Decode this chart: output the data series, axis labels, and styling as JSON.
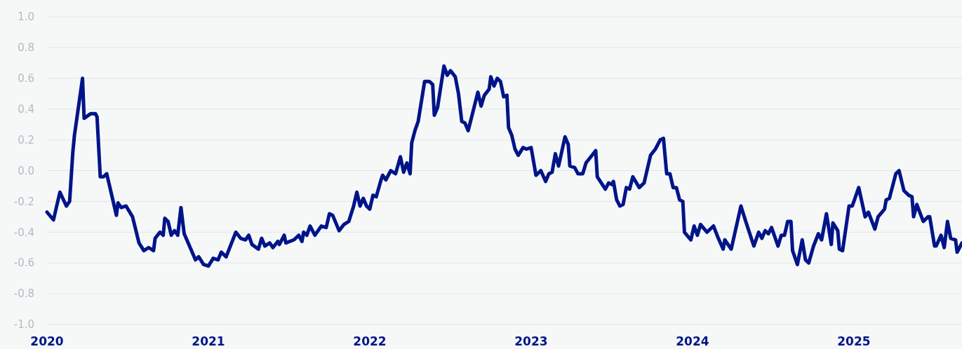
{
  "chart_data": {
    "type": "line",
    "x": [
      2020.0,
      2020.04,
      2020.08,
      2020.12,
      2020.14,
      2020.16,
      2020.17,
      2020.22,
      2020.23,
      2020.27,
      2020.3,
      2020.31,
      2020.33,
      2020.35,
      2020.37,
      2020.43,
      2020.44,
      2020.46,
      2020.49,
      2020.53,
      2020.57,
      2020.6,
      2020.63,
      2020.66,
      2020.67,
      2020.7,
      2020.72,
      2020.73,
      2020.75,
      2020.77,
      2020.79,
      2020.81,
      2020.83,
      2020.85,
      2020.92,
      2020.94,
      2020.97,
      2021.0,
      2021.03,
      2021.06,
      2021.08,
      2021.11,
      2021.17,
      2021.2,
      2021.23,
      2021.25,
      2021.27,
      2021.31,
      2021.33,
      2021.35,
      2021.38,
      2021.4,
      2021.43,
      2021.44,
      2021.47,
      2021.48,
      2021.53,
      2021.56,
      2021.58,
      2021.59,
      2021.61,
      2021.63,
      2021.66,
      2021.7,
      2021.73,
      2021.75,
      2021.77,
      2021.81,
      2021.84,
      2021.87,
      2021.9,
      2021.92,
      2021.94,
      2021.96,
      2021.98,
      2022.0,
      2022.02,
      2022.04,
      2022.07,
      2022.08,
      2022.1,
      2022.13,
      2022.16,
      2022.19,
      2022.21,
      2022.23,
      2022.25,
      2022.26,
      2022.28,
      2022.3,
      2022.34,
      2022.37,
      2022.39,
      2022.4,
      2022.42,
      2022.46,
      2022.48,
      2022.5,
      2022.53,
      2022.55,
      2022.57,
      2022.59,
      2022.61,
      2022.67,
      2022.69,
      2022.71,
      2022.74,
      2022.75,
      2022.77,
      2022.79,
      2022.81,
      2022.83,
      2022.85,
      2022.86,
      2022.88,
      2022.9,
      2022.92,
      2022.95,
      2022.97,
      2023.0,
      2023.03,
      2023.06,
      2023.09,
      2023.11,
      2023.13,
      2023.15,
      2023.17,
      2023.21,
      2023.23,
      2023.24,
      2023.27,
      2023.29,
      2023.32,
      2023.34,
      2023.4,
      2023.41,
      2023.46,
      2023.48,
      2023.5,
      2023.51,
      2023.53,
      2023.55,
      2023.57,
      2023.59,
      2023.61,
      2023.63,
      2023.67,
      2023.7,
      2023.74,
      2023.77,
      2023.8,
      2023.82,
      2023.84,
      2023.86,
      2023.88,
      2023.9,
      2023.92,
      2023.94,
      2023.95,
      2023.99,
      2024.01,
      2024.03,
      2024.05,
      2024.09,
      2024.13,
      2024.16,
      2024.19,
      2024.2,
      2024.24,
      2024.3,
      2024.33,
      2024.38,
      2024.41,
      2024.43,
      2024.45,
      2024.47,
      2024.49,
      2024.53,
      2024.55,
      2024.57,
      2024.59,
      2024.61,
      2024.62,
      2024.65,
      2024.68,
      2024.7,
      2024.72,
      2024.75,
      2024.78,
      2024.8,
      2024.83,
      2024.86,
      2024.87,
      2024.9,
      2024.91,
      2024.93,
      2024.97,
      2024.99,
      2025.03,
      2025.07,
      2025.09,
      2025.13,
      2025.15,
      2025.19,
      2025.2,
      2025.22,
      2025.26,
      2025.28,
      2025.31,
      2025.34,
      2025.36,
      2025.37,
      2025.39,
      2025.43,
      2025.46,
      2025.47,
      2025.5,
      2025.51,
      2025.54,
      2025.56,
      2025.58,
      2025.6,
      2025.63,
      2025.64,
      2025.67
    ],
    "series": [
      {
        "color": "#001489",
        "values": [
          -0.27,
          -0.32,
          -0.14,
          -0.23,
          -0.2,
          0.12,
          0.23,
          0.6,
          0.34,
          0.37,
          0.37,
          0.35,
          -0.04,
          -0.04,
          -0.02,
          -0.29,
          -0.21,
          -0.24,
          -0.23,
          -0.3,
          -0.47,
          -0.52,
          -0.5,
          -0.52,
          -0.44,
          -0.4,
          -0.42,
          -0.31,
          -0.33,
          -0.42,
          -0.39,
          -0.42,
          -0.24,
          -0.41,
          -0.58,
          -0.56,
          -0.61,
          -0.62,
          -0.57,
          -0.58,
          -0.53,
          -0.56,
          -0.4,
          -0.44,
          -0.45,
          -0.42,
          -0.48,
          -0.51,
          -0.44,
          -0.49,
          -0.47,
          -0.5,
          -0.46,
          -0.48,
          -0.42,
          -0.47,
          -0.45,
          -0.42,
          -0.46,
          -0.4,
          -0.42,
          -0.36,
          -0.42,
          -0.36,
          -0.37,
          -0.28,
          -0.29,
          -0.39,
          -0.35,
          -0.33,
          -0.23,
          -0.14,
          -0.23,
          -0.18,
          -0.23,
          -0.25,
          -0.16,
          -0.17,
          -0.06,
          -0.03,
          -0.06,
          0.0,
          -0.02,
          0.09,
          -0.01,
          0.05,
          -0.02,
          0.18,
          0.26,
          0.32,
          0.58,
          0.58,
          0.56,
          0.36,
          0.41,
          0.68,
          0.62,
          0.65,
          0.61,
          0.5,
          0.32,
          0.31,
          0.26,
          0.51,
          0.42,
          0.49,
          0.53,
          0.61,
          0.55,
          0.6,
          0.58,
          0.48,
          0.49,
          0.28,
          0.23,
          0.14,
          0.1,
          0.15,
          0.14,
          0.15,
          -0.03,
          0.0,
          -0.07,
          -0.02,
          -0.01,
          0.11,
          0.03,
          0.22,
          0.17,
          0.03,
          0.02,
          -0.02,
          -0.02,
          0.05,
          0.13,
          -0.04,
          -0.12,
          -0.08,
          -0.09,
          -0.07,
          -0.19,
          -0.23,
          -0.22,
          -0.11,
          -0.12,
          -0.04,
          -0.11,
          -0.08,
          0.1,
          0.14,
          0.2,
          0.21,
          -0.02,
          -0.02,
          -0.11,
          -0.11,
          -0.19,
          -0.2,
          -0.4,
          -0.45,
          -0.36,
          -0.42,
          -0.35,
          -0.4,
          -0.36,
          -0.44,
          -0.51,
          -0.45,
          -0.51,
          -0.23,
          -0.33,
          -0.49,
          -0.4,
          -0.44,
          -0.39,
          -0.41,
          -0.37,
          -0.49,
          -0.42,
          -0.42,
          -0.33,
          -0.33,
          -0.52,
          -0.61,
          -0.45,
          -0.58,
          -0.6,
          -0.49,
          -0.41,
          -0.45,
          -0.28,
          -0.48,
          -0.34,
          -0.39,
          -0.51,
          -0.52,
          -0.23,
          -0.23,
          -0.11,
          -0.3,
          -0.27,
          -0.38,
          -0.3,
          -0.25,
          -0.19,
          -0.18,
          -0.02,
          0.0,
          -0.13,
          -0.16,
          -0.17,
          -0.3,
          -0.22,
          -0.33,
          -0.3,
          -0.3,
          -0.49,
          -0.49,
          -0.42,
          -0.5,
          -0.33,
          -0.44,
          -0.45,
          -0.53,
          -0.47
        ]
      }
    ],
    "xlim": [
      2020,
      2025.67
    ],
    "xticks": [
      2020,
      2021,
      2022,
      2023,
      2024,
      2025
    ],
    "ylim": [
      -1.0,
      1.0
    ],
    "yticks": [
      {
        "value": -1,
        "label": "-1.0"
      },
      {
        "value": -0.8,
        "label": "-0.8"
      },
      {
        "value": -0.6,
        "label": "-0.6"
      },
      {
        "value": -0.4,
        "label": "-0.4"
      },
      {
        "value": -0.2,
        "label": "-0.2"
      },
      {
        "value": 0,
        "label": "0.0"
      },
      {
        "value": 0.2,
        "label": "0.2"
      },
      {
        "value": 0.4,
        "label": "0.4"
      },
      {
        "value": 0.6,
        "label": "0.6"
      },
      {
        "value": 0.8,
        "label": "0.8"
      },
      {
        "value": 1,
        "label": "1.0"
      }
    ],
    "grid": "y",
    "marker": "none",
    "line_style": "solid"
  }
}
